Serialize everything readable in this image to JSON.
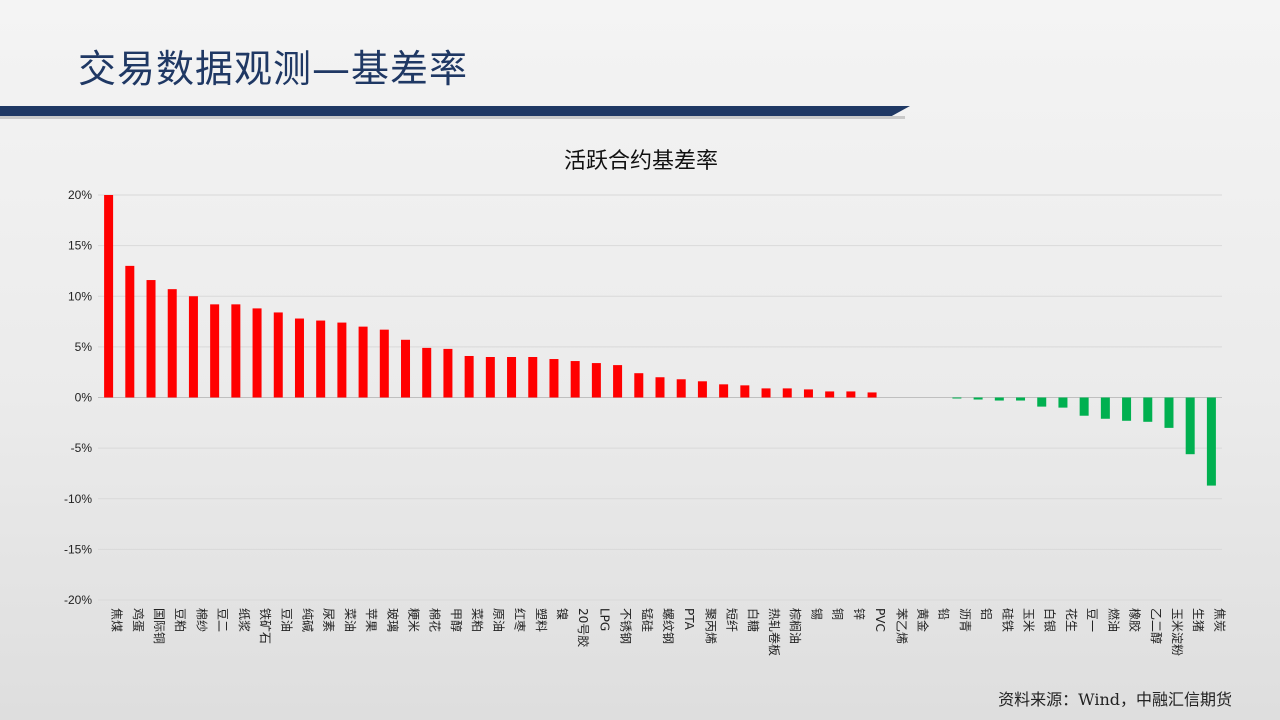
{
  "page": {
    "title": "交易数据观测—基差率",
    "source": "资料来源：Wind，中融汇信期货"
  },
  "colors": {
    "title_blue": "#1f3864",
    "positive_bar": "#ff0000",
    "negative_bar": "#00b050"
  },
  "chart_data": {
    "type": "bar",
    "title": "活跃合约基差率",
    "xlabel": "",
    "ylabel": "",
    "ylim": [
      -20,
      20
    ],
    "yticks": [
      20,
      15,
      10,
      5,
      0,
      -5,
      -10,
      -15,
      -20
    ],
    "ytick_labels": [
      "20%",
      "15%",
      "10%",
      "5%",
      "0%",
      "-5%",
      "-10%",
      "-15%",
      "-20%"
    ],
    "grid": true,
    "legend": "none",
    "categories": [
      "焦煤",
      "鸡蛋",
      "国际铜",
      "豆粕",
      "棉纱",
      "豆二",
      "纸浆",
      "铁矿石",
      "豆油",
      "纯碱",
      "尿素",
      "菜油",
      "苹果",
      "玻璃",
      "粳米",
      "棉花",
      "甲醇",
      "菜粕",
      "原油",
      "红枣",
      "塑料",
      "镍",
      "20号胶",
      "LPG",
      "不锈钢",
      "锰硅",
      "螺纹钢",
      "PTA",
      "聚丙烯",
      "短纤",
      "白糖",
      "热轧卷板",
      "棕榈油",
      "锡",
      "铜",
      "锌",
      "PVC",
      "苯乙烯",
      "黄金",
      "铅",
      "沥青",
      "铝",
      "硅铁",
      "玉米",
      "白银",
      "花生",
      "豆一",
      "燃油",
      "橡胶",
      "乙二醇",
      "玉米淀粉",
      "生猪",
      "焦炭"
    ],
    "values": [
      20.0,
      13.0,
      11.6,
      10.7,
      10.0,
      9.2,
      9.2,
      8.8,
      8.4,
      7.8,
      7.6,
      7.4,
      7.0,
      6.7,
      5.7,
      4.9,
      4.8,
      4.1,
      4.0,
      4.0,
      4.0,
      3.8,
      3.6,
      3.4,
      3.2,
      2.4,
      2.0,
      1.8,
      1.6,
      1.3,
      1.2,
      0.9,
      0.9,
      0.8,
      0.6,
      0.6,
      0.5,
      0.0,
      0.0,
      0.0,
      -0.1,
      -0.2,
      -0.3,
      -0.3,
      -0.9,
      -1.0,
      -1.8,
      -2.1,
      -2.3,
      -2.4,
      -3.0,
      -5.6,
      -8.7
    ]
  }
}
